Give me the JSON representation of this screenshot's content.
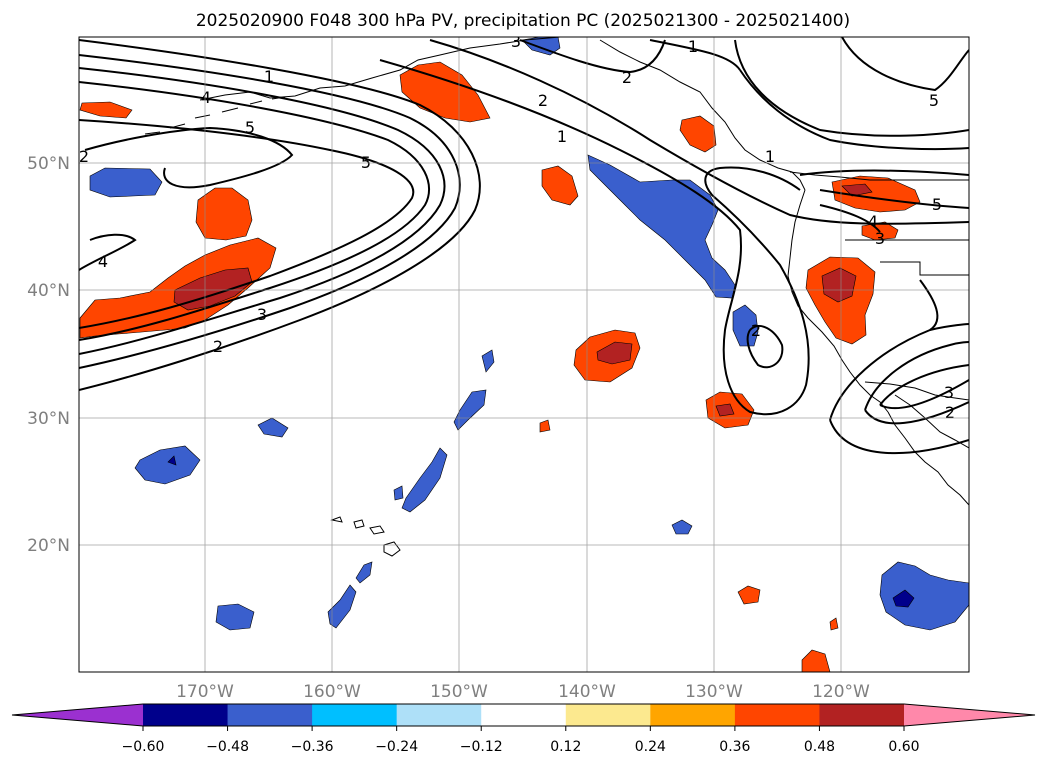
{
  "title": "2025020900 F048 300 hPa PV, precipitation PC (2025021300 - 2025021400)",
  "map": {
    "lon_range": [
      -180,
      -110
    ],
    "lat_range": [
      10,
      60
    ],
    "lat_labels": [
      "20°N",
      "30°N",
      "40°N",
      "50°N"
    ],
    "lon_labels": [
      "170°W",
      "160°W",
      "150°W",
      "140°W",
      "130°W",
      "120°W"
    ],
    "gridlines": true
  },
  "pv_contour_labels": [
    "1",
    "2",
    "3",
    "4",
    "5",
    "1",
    "2",
    "3",
    "4",
    "5",
    "1",
    "2",
    "1",
    "2",
    "5",
    "5",
    "4",
    "3",
    "2",
    "3",
    "2"
  ],
  "colorbar": {
    "ticks": [
      "−0.60",
      "−0.48",
      "−0.36",
      "−0.24",
      "−0.12",
      "0.12",
      "0.24",
      "0.36",
      "0.48",
      "0.60"
    ],
    "colors": [
      "#9b30d0",
      "#00008b",
      "#3a5fcd",
      "#00bfff",
      "#aee0f8",
      "#ffffff",
      "#fce98f",
      "#ffa500",
      "#ff4500",
      "#b22222",
      "#ff88aa"
    ]
  },
  "colors": {
    "neg_strong": "#00008b",
    "neg": "#3a5fcd",
    "neg_edge": "#00bfff",
    "pos": "#ff4500",
    "pos_strong": "#b22222",
    "pos_edge": "#ffa500",
    "pos_faint": "#fce98f"
  }
}
